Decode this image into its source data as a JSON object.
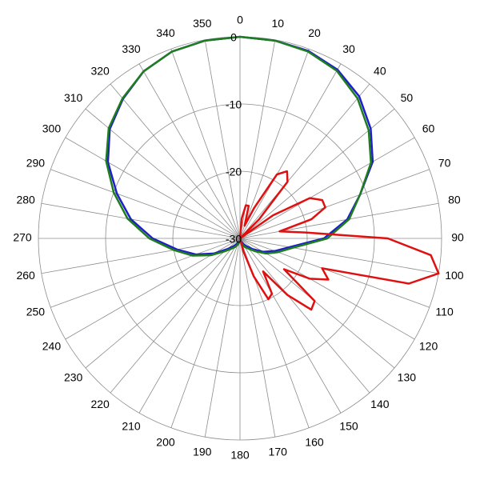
{
  "chart_data": {
    "type": "polar",
    "rlim": [
      -30,
      0
    ],
    "rticks": [
      -30,
      -20,
      -10,
      0
    ],
    "thetaticks": [
      0,
      10,
      20,
      30,
      40,
      50,
      60,
      70,
      80,
      90,
      100,
      110,
      120,
      130,
      140,
      150,
      160,
      170,
      180,
      190,
      200,
      210,
      220,
      230,
      240,
      250,
      260,
      270,
      280,
      290,
      300,
      310,
      320,
      330,
      340,
      350
    ],
    "grid": true,
    "series": [
      {
        "color": "#1f1fc8",
        "theta": [
          0,
          10,
          20,
          30,
          40,
          50,
          60,
          70,
          80,
          90,
          100,
          110,
          120,
          130,
          140,
          150,
          160,
          170,
          180,
          190,
          200,
          210,
          220,
          230,
          240,
          250,
          260,
          270,
          280,
          290,
          300,
          310,
          320,
          330,
          340,
          350
        ],
        "values": [
          0,
          -0.1,
          -0.3,
          -1,
          -2.4,
          -4.6,
          -7.2,
          -11,
          -13.8,
          -17.5,
          -22.5,
          -24.5,
          -26,
          -27.5,
          -28.5,
          -29,
          -29.5,
          -29.5,
          -29.5,
          -29.5,
          -29.5,
          -29,
          -28.5,
          -27.5,
          -25.5,
          -23,
          -20.5,
          -17,
          -13.5,
          -10.5,
          -7.3,
          -4.7,
          -2.9,
          -1.3,
          -0.4,
          -0.1
        ]
      },
      {
        "color": "#1e7d1e",
        "theta": [
          0,
          10,
          20,
          30,
          40,
          50,
          60,
          70,
          80,
          90,
          100,
          110,
          120,
          130,
          140,
          150,
          160,
          170,
          180,
          190,
          200,
          210,
          220,
          230,
          240,
          250,
          260,
          270,
          280,
          290,
          300,
          310,
          320,
          330,
          340,
          350
        ],
        "values": [
          0,
          -0.1,
          -0.4,
          -1.2,
          -2.8,
          -5,
          -7.5,
          -11,
          -13.5,
          -17,
          -22,
          -24,
          -25.5,
          -27,
          -28,
          -28.5,
          -29,
          -29.5,
          -29.5,
          -29.5,
          -29,
          -28.5,
          -28,
          -27,
          -25,
          -22.5,
          -20,
          -16.5,
          -13,
          -10,
          -7,
          -4.5,
          -2.8,
          -1.3,
          -0.4,
          -0.1
        ]
      },
      {
        "color": "#e01010",
        "theta": [
          0,
          5,
          10,
          15,
          20,
          25,
          30,
          35,
          40,
          45,
          50,
          55,
          60,
          65,
          70,
          75,
          80,
          85,
          90,
          95,
          100,
          105,
          110,
          115,
          120,
          125,
          130,
          135,
          140,
          145,
          150,
          155,
          160,
          165,
          170,
          175,
          180,
          185,
          190,
          195,
          200,
          205,
          210,
          215,
          220,
          225,
          230,
          235,
          240,
          245,
          250,
          255,
          260,
          265,
          270,
          275,
          280,
          285,
          290,
          295,
          300,
          305,
          310,
          315,
          320,
          325,
          330,
          335,
          340,
          345,
          350,
          355
        ],
        "values": [
          -30,
          -27,
          -25,
          -25,
          -28,
          -25,
          -19,
          -17.8,
          -19,
          -26,
          -30,
          -24,
          -18,
          -16.5,
          -16.5,
          -19,
          -24,
          -20,
          -8,
          -1.5,
          0,
          -4,
          -17,
          -15.5,
          -18,
          -22,
          -15.5,
          -15,
          -19,
          -24,
          -20.5,
          -20,
          -24,
          -28,
          -30,
          -30,
          -30,
          -30,
          -30,
          -30,
          -30,
          -30,
          -30,
          -30,
          -30,
          -30,
          -30,
          -30,
          -30,
          -30,
          -30,
          -30,
          -30,
          -30,
          -30,
          -30,
          -30,
          -30,
          -30,
          -30,
          -30,
          -30,
          -30,
          -30,
          -30,
          -30,
          -30,
          -30,
          -30,
          -30,
          -30,
          -30
        ]
      }
    ]
  }
}
